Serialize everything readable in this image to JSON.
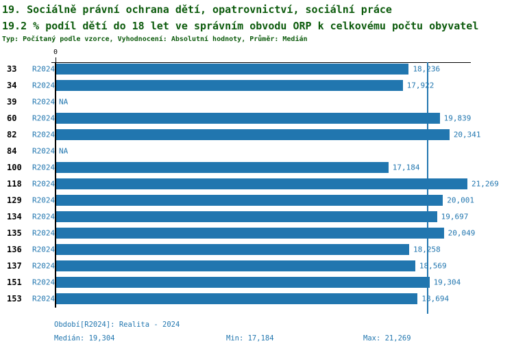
{
  "title": {
    "line1": "19. Sociálně právní ochrana dětí, opatrovnictví, sociální práce",
    "line2": "19.2 % podíl dětí do 18 let ve správním obvodu ORP k celkovému počtu obyvatel",
    "subtitle": "Typ: Počítaný podle vzorce, Vyhodnocení: Absolutní hodnoty, Průměr: Medián"
  },
  "chart_data": {
    "type": "bar",
    "orientation": "horizontal",
    "title": "19. Sociálně právní ochrana dětí, opatrovnictví, sociální práce",
    "subtitle": "19.2 % podíl dětí do 18 let ve správním obvodu ORP k celkovému počtu obyvatel",
    "xlabel": "",
    "ylabel": "",
    "axis": {
      "zero_tick_label": "0",
      "xmin": 0,
      "xmax": 21480,
      "grid": false
    },
    "bar_color": "#2176af",
    "median_value": 19304,
    "categories": [
      "33",
      "34",
      "39",
      "60",
      "82",
      "84",
      "100",
      "118",
      "129",
      "134",
      "135",
      "136",
      "137",
      "151",
      "153"
    ],
    "series": [
      {
        "name": "R2024",
        "values": [
          18236,
          17922,
          null,
          19839,
          20341,
          null,
          17184,
          21269,
          20001,
          19697,
          20049,
          18258,
          18569,
          19304,
          18694
        ]
      }
    ],
    "rows": [
      {
        "category": "33",
        "period": "R2024",
        "value": 18236,
        "label": "18,236"
      },
      {
        "category": "34",
        "period": "R2024",
        "value": 17922,
        "label": "17,922"
      },
      {
        "category": "39",
        "period": "R2024",
        "value": null,
        "label": "NA"
      },
      {
        "category": "60",
        "period": "R2024",
        "value": 19839,
        "label": "19,839"
      },
      {
        "category": "82",
        "period": "R2024",
        "value": 20341,
        "label": "20,341"
      },
      {
        "category": "84",
        "period": "R2024",
        "value": null,
        "label": "NA"
      },
      {
        "category": "100",
        "period": "R2024",
        "value": 17184,
        "label": "17,184"
      },
      {
        "category": "118",
        "period": "R2024",
        "value": 21269,
        "label": "21,269"
      },
      {
        "category": "129",
        "period": "R2024",
        "value": 20001,
        "label": "20,001"
      },
      {
        "category": "134",
        "period": "R2024",
        "value": 19697,
        "label": "19,697"
      },
      {
        "category": "135",
        "period": "R2024",
        "value": 20049,
        "label": "20,049"
      },
      {
        "category": "136",
        "period": "R2024",
        "value": 18258,
        "label": "18,258"
      },
      {
        "category": "137",
        "period": "R2024",
        "value": 18569,
        "label": "18,569"
      },
      {
        "category": "151",
        "period": "R2024",
        "value": 19304,
        "label": "19,304"
      },
      {
        "category": "153",
        "period": "R2024",
        "value": 18694,
        "label": "18,694"
      }
    ]
  },
  "footer": {
    "period": "Období[R2024]: Realita - 2024",
    "median": "Medián: 19,304",
    "min": "Min: 17,184",
    "max": "Max: 21,269"
  },
  "colors": {
    "title_green": "#0b5a0b",
    "bar_blue": "#2176af",
    "axis_black": "#000000"
  }
}
